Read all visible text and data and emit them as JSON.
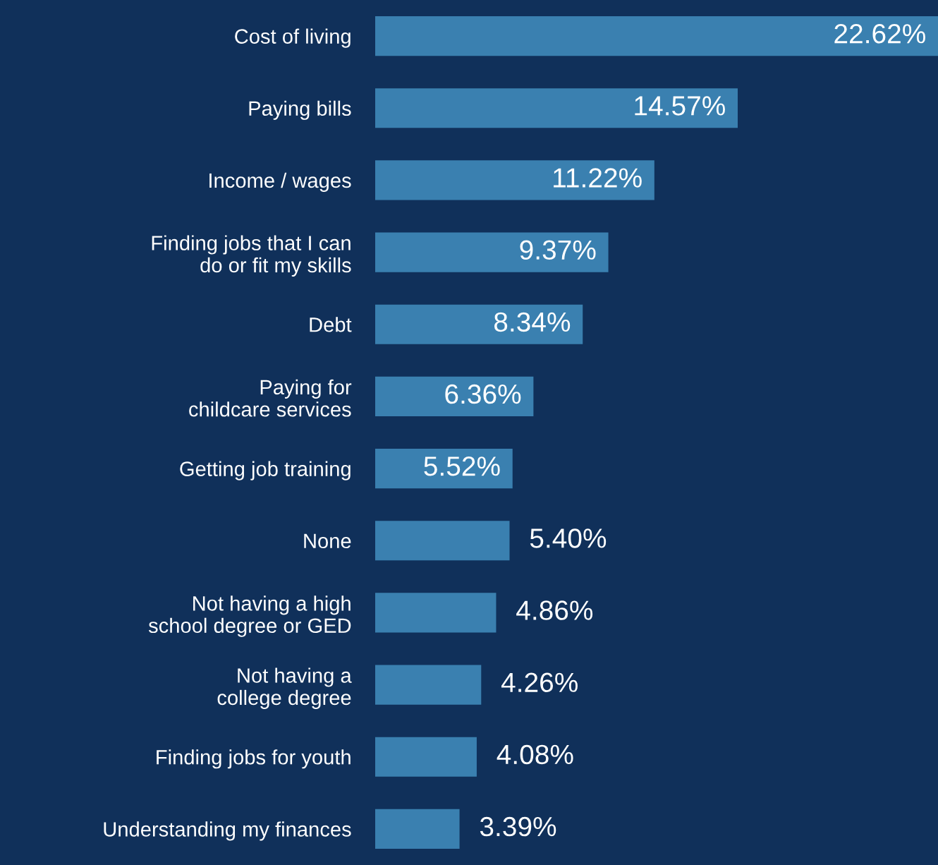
{
  "chart_data": {
    "type": "bar",
    "orientation": "horizontal",
    "categories": [
      "Cost of living",
      "Paying bills",
      "Income / wages",
      "Finding jobs that I can\ndo or fit my skills",
      "Debt",
      "Paying for\nchildcare services",
      "Getting job training",
      "None",
      "Not having a high\nschool degree or GED",
      "Not having a\ncollege degree",
      "Finding jobs for youth",
      "Understanding my finances"
    ],
    "values": [
      22.62,
      14.57,
      11.22,
      9.37,
      8.34,
      6.36,
      5.52,
      5.4,
      4.86,
      4.26,
      4.08,
      3.39
    ],
    "value_labels": [
      "22.62%",
      "14.57%",
      "11.22%",
      "9.37%",
      "8.34%",
      "6.36%",
      "5.52%",
      "5.40%",
      "4.86%",
      "4.26%",
      "4.08%",
      "3.39%"
    ],
    "color": "#3a80b0"
  }
}
